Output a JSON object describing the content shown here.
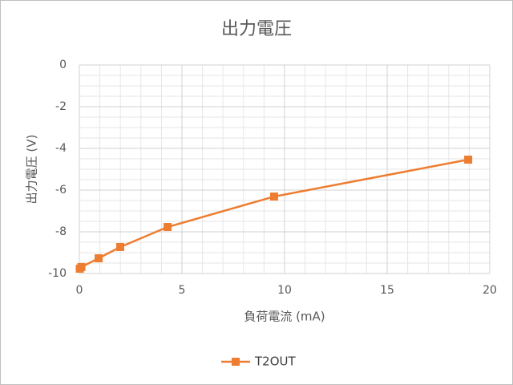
{
  "chart_data": {
    "type": "line",
    "title": "出力電圧",
    "x_label": "負荷電流 (mA)",
    "y_label": "出力電圧 (V)",
    "series": [
      {
        "name": "T2OUT",
        "color": "#ed7d31",
        "x": [
          0.02,
          0.1,
          0.94,
          1.99,
          4.3,
          9.49,
          18.95
        ],
        "values": [
          -9.77,
          -9.69,
          -9.27,
          -8.73,
          -7.77,
          -6.31,
          -4.54
        ]
      }
    ],
    "xlim": [
      0,
      20
    ],
    "xticks": [
      0,
      5,
      10,
      15,
      20
    ],
    "ylim": [
      -10,
      0
    ],
    "yticks": [
      -10,
      -8,
      -6,
      -4,
      -2,
      0
    ],
    "x_minor_ticks": [
      1,
      2,
      3,
      4,
      6,
      7,
      8,
      9,
      11,
      12,
      13,
      14,
      16,
      17,
      18,
      19
    ],
    "y_minor_ticks": [
      -9.5,
      -9,
      -8.5,
      -7.5,
      -7,
      -6.5,
      -5.5,
      -5,
      -4.5,
      -3.5,
      -3,
      -2.5,
      -1.5,
      -1,
      -0.5
    ],
    "grid": true,
    "legend": "bottom"
  }
}
